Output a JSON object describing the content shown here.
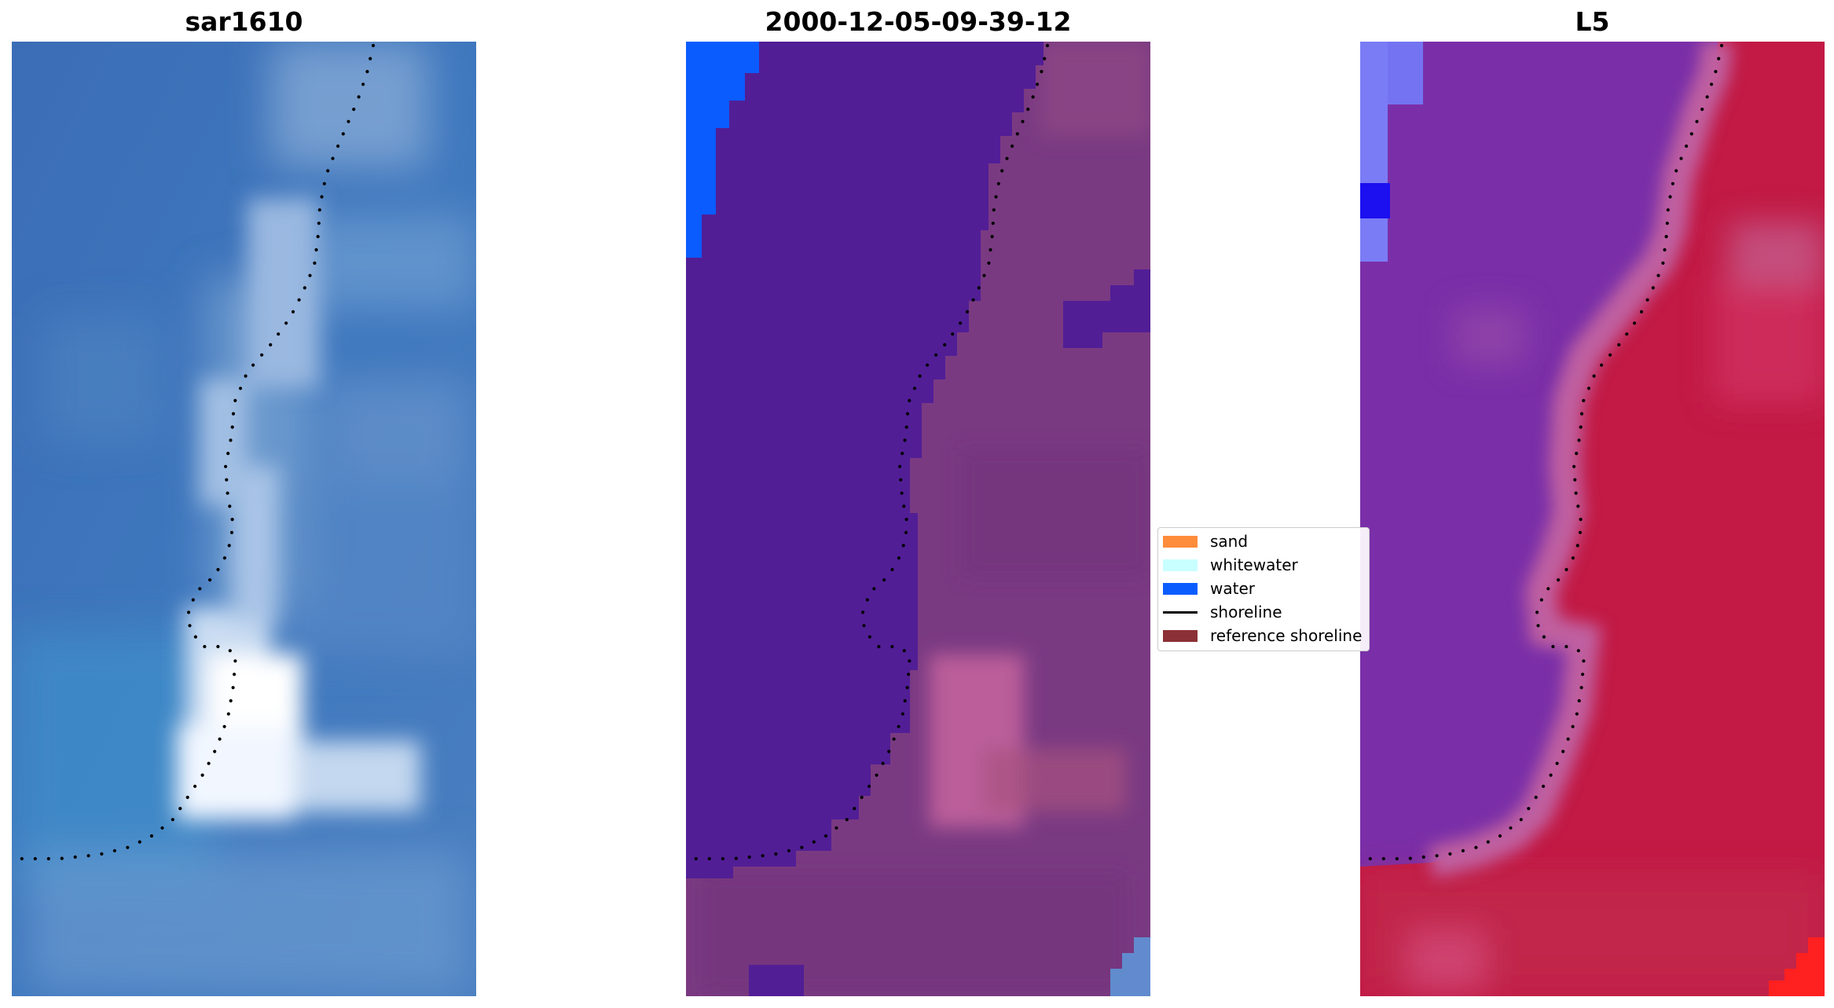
{
  "panels": [
    {
      "title": "sar1610"
    },
    {
      "title": "2000-12-05-09-39-12"
    },
    {
      "title": "L5"
    }
  ],
  "legend": {
    "items": [
      {
        "label": "sand",
        "color": "#ff8c3b",
        "kind": "patch"
      },
      {
        "label": "whitewater",
        "color": "#c8ffff",
        "kind": "patch"
      },
      {
        "label": "water",
        "color": "#0a5cff",
        "kind": "patch"
      },
      {
        "label": "shoreline",
        "color": "#000000",
        "kind": "line"
      },
      {
        "label": "reference shoreline",
        "color": "#8b3036",
        "kind": "patch"
      }
    ]
  },
  "colors": {
    "rgb_water": "#3a6fb8",
    "rgb_surf": "#ffffff",
    "class_water": "#521e96",
    "class_land": "#7a3a82",
    "class_open_water": "#0a5cff",
    "index_water": "#7a2fa8",
    "index_land": "#c4123c",
    "shoreline": "#000000"
  }
}
